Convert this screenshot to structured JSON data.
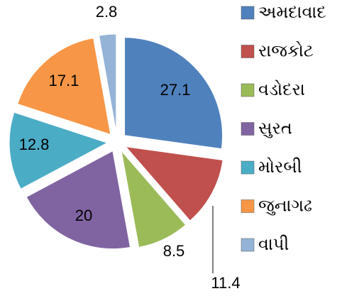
{
  "chart_data": {
    "type": "pie",
    "categories": [
      "અમદાવાદ",
      "રાજકોટ",
      "વડોદરા",
      "સુરત",
      "મોરબી",
      "જુનાગઢ",
      "વાપી"
    ],
    "values": [
      27.1,
      11.4,
      8.5,
      20,
      12.8,
      17.1,
      2.8
    ],
    "colors": [
      "#4f81bd",
      "#c0504d",
      "#9bbb59",
      "#8064a2",
      "#4bacc6",
      "#f79646",
      "#95b3d7"
    ],
    "legend": "right"
  }
}
